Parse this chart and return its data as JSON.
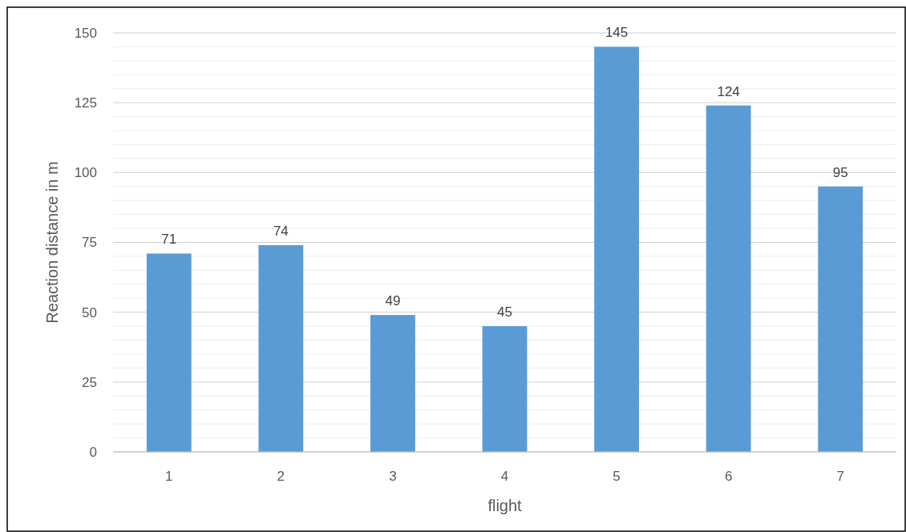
{
  "chart_data": {
    "type": "bar",
    "xlabel": "flight",
    "ylabel": "Reaction distance in m",
    "categories": [
      "1",
      "2",
      "3",
      "4",
      "5",
      "6",
      "7"
    ],
    "values": [
      71,
      74,
      49,
      45,
      145,
      124,
      95
    ],
    "color": "#5b9bd5",
    "data_labels": true,
    "grid": "y",
    "ylim": [
      0,
      150
    ],
    "yticks": [
      0,
      {
        "value": 5,
        "label": null
      },
      {
        "value": 10,
        "label": null
      },
      {
        "value": 15,
        "label": null
      },
      {
        "value": 20,
        "label": null
      },
      25,
      {
        "value": 30,
        "label": null
      },
      {
        "value": 35,
        "label": null
      },
      {
        "value": 40,
        "label": null
      },
      {
        "value": 45,
        "label": null
      },
      50,
      {
        "value": 55,
        "label": null
      },
      {
        "value": 60,
        "label": null
      },
      {
        "value": 65,
        "label": null
      },
      {
        "value": 70,
        "label": null
      },
      75,
      {
        "value": 80,
        "label": null
      },
      {
        "value": 85,
        "label": null
      },
      {
        "value": 90,
        "label": null
      },
      {
        "value": 95,
        "label": null
      },
      100,
      {
        "value": 105,
        "label": null
      },
      {
        "value": 110,
        "label": null
      },
      {
        "value": 115,
        "label": null
      },
      {
        "value": 120,
        "label": null
      },
      125,
      {
        "value": 130,
        "label": null
      },
      {
        "value": 135,
        "label": null
      },
      {
        "value": 140,
        "label": null
      },
      {
        "value": 145,
        "label": null
      },
      150
    ]
  }
}
